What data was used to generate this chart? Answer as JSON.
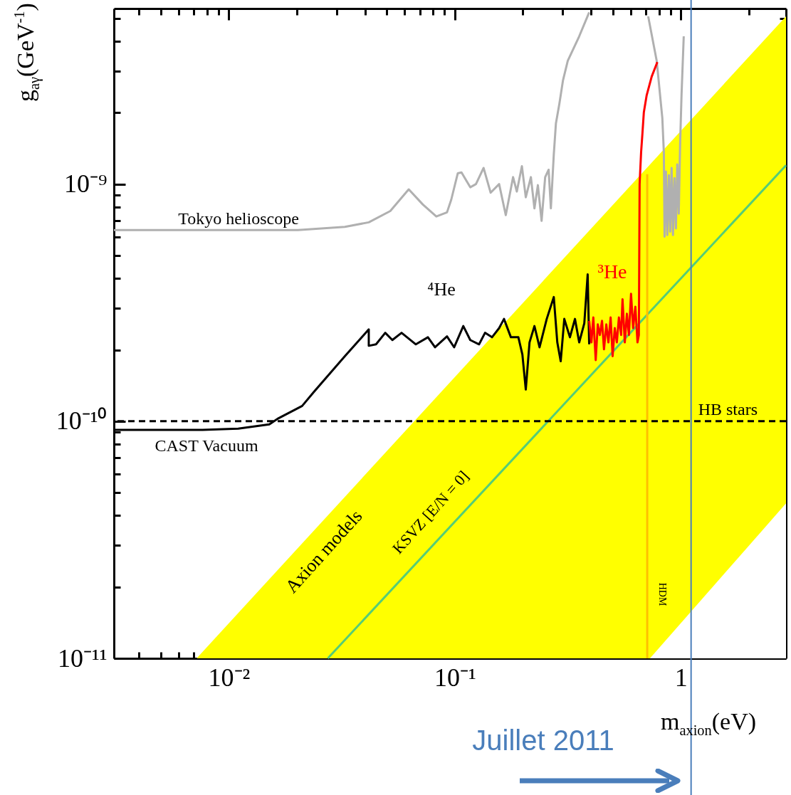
{
  "chart_data": {
    "type": "line",
    "xlabel": "m$_{axion}$(eV)",
    "ylabel": "g$_{aγ}$(GeV$^{-1}$)",
    "log": "xy",
    "xlim": [
      0.0031,
      2.92
    ],
    "ylim": [
      1e-11,
      5.5e-09
    ],
    "xticks": [
      {
        "value": 0.004,
        "label": null
      },
      {
        "value": 0.005,
        "label": null
      },
      {
        "value": 0.006,
        "label": null
      },
      {
        "value": 0.007,
        "label": null
      },
      {
        "value": 0.008,
        "label": null
      },
      {
        "value": 0.009,
        "label": null
      },
      {
        "value": 0.01,
        "label": "10⁻²"
      },
      {
        "value": 0.02,
        "label": null
      },
      {
        "value": 0.03,
        "label": null
      },
      {
        "value": 0.04,
        "label": null
      },
      {
        "value": 0.05,
        "label": null
      },
      {
        "value": 0.06,
        "label": null
      },
      {
        "value": 0.07,
        "label": null
      },
      {
        "value": 0.08,
        "label": null
      },
      {
        "value": 0.09,
        "label": null
      },
      {
        "value": 0.1,
        "label": "10⁻¹"
      },
      {
        "value": 0.2,
        "label": null
      },
      {
        "value": 0.3,
        "label": null
      },
      {
        "value": 0.4,
        "label": null
      },
      {
        "value": 0.5,
        "label": null
      },
      {
        "value": 0.6,
        "label": null
      },
      {
        "value": 0.7,
        "label": null
      },
      {
        "value": 0.8,
        "label": null
      },
      {
        "value": 0.9,
        "label": null
      },
      1,
      {
        "value": 2,
        "label": null
      }
    ],
    "yticks": [
      {
        "value": 1e-11,
        "label": "10⁻¹¹"
      },
      {
        "value": 2e-11,
        "label": null
      },
      {
        "value": 3e-11,
        "label": null
      },
      {
        "value": 4e-11,
        "label": null
      },
      {
        "value": 5e-11,
        "label": null
      },
      {
        "value": 6e-11,
        "label": null
      },
      {
        "value": 7e-11,
        "label": null
      },
      {
        "value": 8e-11,
        "label": null
      },
      {
        "value": 9e-11,
        "label": null
      },
      {
        "value": 1e-10,
        "label": "10⁻¹⁰"
      },
      {
        "value": 2e-10,
        "label": null
      },
      {
        "value": 3e-10,
        "label": null
      },
      {
        "value": 4e-10,
        "label": null
      },
      {
        "value": 5e-10,
        "label": null
      },
      {
        "value": 6e-10,
        "label": null
      },
      {
        "value": 7e-10,
        "label": null
      },
      {
        "value": 8e-10,
        "label": null
      },
      {
        "value": 9e-10,
        "label": null
      },
      {
        "value": 1e-09,
        "label": "10⁻⁹"
      },
      {
        "value": 2e-09,
        "label": null
      },
      {
        "value": 3e-09,
        "label": null
      },
      {
        "value": 4e-09,
        "label": null
      },
      {
        "value": 5e-09,
        "label": null
      }
    ],
    "series": [
      {
        "type": "area",
        "color": "#ffff00",
        "x": [
          0.0072,
          2.92
        ],
        "values": [
          1e-11,
          5.1e-09
        ]
      },
      {
        "type": "area",
        "color": "#ffffff",
        "x": [
          0.73,
          2.92
        ],
        "values": [
          1e-11,
          4.5e-11
        ]
      },
      {
        "type": "line",
        "color": "#55cc77",
        "x": [
          0.0274,
          2.92
        ],
        "values": [
          1e-11,
          1.2e-09
        ]
      },
      {
        "type": "line",
        "color": "#ffc000",
        "x": [
          0.71,
          0.71
        ],
        "values": [
          1e-11,
          1.1e-09
        ]
      },
      {
        "type": "line",
        "color": "#b0b0b0",
        "x": [
          0.0031,
          0.0202,
          0.0326,
          0.0416,
          0.0518,
          0.0625,
          0.0722,
          0.0828,
          0.0923,
          0.0964,
          0.103,
          0.107,
          0.117,
          0.124,
          0.134,
          0.144,
          0.157,
          0.168,
          0.181,
          0.188,
          0.198,
          0.206,
          0.217,
          0.225,
          0.233,
          0.242,
          0.251,
          0.26,
          0.266,
          0.274,
          0.28,
          0.29,
          0.301,
          0.316,
          0.355,
          0.393,
          0.399,
          0.5,
          0.697,
          0.717,
          0.782,
          0.828,
          0.841,
          0.847,
          0.859,
          0.871,
          0.885,
          0.897,
          0.91,
          0.923,
          0.937,
          0.951,
          0.964,
          0.979,
          0.993,
          1.007,
          1.03
        ],
        "values": [
          6.4e-10,
          6.4e-10,
          6.6e-10,
          6.9e-10,
          7.7e-10,
          9.5e-10,
          8.2e-10,
          7.3e-10,
          7.6e-10,
          8.6e-10,
          1.11e-09,
          1.12e-09,
          9.7e-10,
          1e-09,
          1.17e-09,
          9.2e-10,
          1e-09,
          7.4e-10,
          1.07e-09,
          9.3e-10,
          1.19e-09,
          8.8e-10,
          1.07e-09,
          7.9e-10,
          9.9e-10,
          7e-10,
          1.07e-09,
          1.15e-09,
          7.9e-10,
          1.33e-09,
          1.8e-09,
          2.18e-09,
          2.74e-09,
          3.31e-09,
          4.2e-09,
          5.3e-09,
          null,
          null,
          null,
          5.1e-09,
          3.31e-09,
          1.9e-09,
          1.36e-09,
          6e-10,
          1.13e-09,
          6.1e-10,
          1.09e-09,
          6.3e-10,
          1.17e-09,
          6.1e-10,
          1.06e-09,
          6.5e-10,
          1.21e-09,
          7.5e-10,
          1.49e-09,
          2.37e-09,
          4.2e-09
        ]
      },
      {
        "type": "line",
        "color": "#000000",
        "x": [
          0.0031,
          0.00765,
          0.011,
          0.0151,
          0.0166,
          0.0211,
          0.0238,
          0.0326,
          0.0416,
          0.0416,
          0.0448,
          0.0492,
          0.0529,
          0.0581,
          0.0672,
          0.076,
          0.0817,
          0.0923,
          0.0993,
          0.109,
          0.117,
          0.128,
          0.136,
          0.146,
          0.157,
          0.165,
          0.177,
          0.191,
          0.199,
          0.206,
          0.214,
          0.225,
          0.237,
          0.255,
          0.274,
          0.284,
          0.294,
          0.305,
          0.323,
          0.34,
          0.355,
          0.374,
          0.387,
          0.393
        ],
        "values": [
          9.2e-11,
          9.2e-11,
          9.3e-11,
          9.7e-11,
          1.03e-10,
          1.16e-10,
          1.33e-10,
          1.88e-10,
          2.44e-10,
          2.08e-10,
          2.11e-10,
          2.36e-10,
          2.2e-10,
          2.36e-10,
          2.11e-10,
          2.26e-10,
          2.05e-10,
          2.28e-10,
          2.05e-10,
          2.52e-10,
          2.2e-10,
          2.11e-10,
          2.36e-10,
          2.26e-10,
          2.47e-10,
          2.7e-10,
          2.26e-10,
          2.26e-10,
          1.91e-10,
          1.36e-10,
          2.15e-10,
          2.52e-10,
          2.05e-10,
          2.7e-10,
          3.34e-10,
          2.15e-10,
          1.79e-10,
          2.7e-10,
          2.26e-10,
          2.7e-10,
          2.15e-10,
          2.59e-10,
          4.16e-10,
          2.11e-10
        ]
      },
      {
        "type": "line",
        "color": "#ff0000",
        "x": [
          0.393,
          0.402,
          0.41,
          0.42,
          0.429,
          0.438,
          0.448,
          0.457,
          0.468,
          0.478,
          0.489,
          0.499,
          0.51,
          0.521,
          0.532,
          0.544,
          0.552,
          0.565,
          0.577,
          0.589,
          0.602,
          0.615,
          0.629,
          0.643,
          0.652,
          0.657,
          0.667,
          0.676,
          0.686,
          0.706,
          0.743,
          0.787
        ],
        "values": [
          2.65e-10,
          2.15e-10,
          2.74e-10,
          1.81e-10,
          2.56e-10,
          2.31e-10,
          2.65e-10,
          2.01e-10,
          2.56e-10,
          2.15e-10,
          2.74e-10,
          1.88e-10,
          2.47e-10,
          2.15e-10,
          2.74e-10,
          2.31e-10,
          3.27e-10,
          2.15e-10,
          2.84e-10,
          2.31e-10,
          3.45e-10,
          2.47e-10,
          3.04e-10,
          2.15e-10,
          2.31e-10,
          1e-09,
          1.36e-09,
          1.63e-09,
          2.01e-09,
          2.37e-09,
          2.84e-09,
          3.27e-09
        ]
      }
    ],
    "ref_lines": [
      {
        "axis": "y",
        "value": 1e-10,
        "label": "HB stars",
        "color": "#000000",
        "line_style": "dashed"
      },
      {
        "axis": "x",
        "value": 1.11,
        "label": "Juillet 2011",
        "color": "#4a7ebb"
      }
    ],
    "annotations": [
      "Tokyo helioscope",
      "CAST Vacuum",
      "⁴He",
      "³He",
      "Axion models",
      "KSVZ [E/N = 0]",
      "HDM"
    ]
  }
}
